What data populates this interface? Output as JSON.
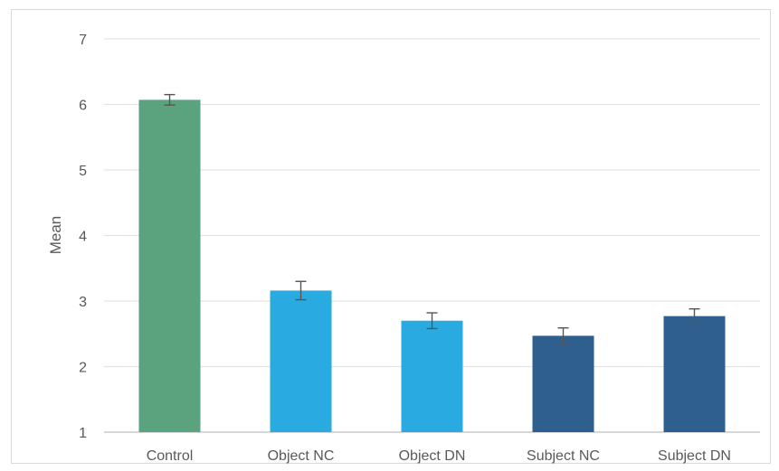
{
  "chart_data": {
    "type": "bar",
    "title": "",
    "xlabel": "",
    "ylabel": "Mean",
    "ylim": [
      1,
      7
    ],
    "yticks": [
      1,
      2,
      3,
      4,
      5,
      6,
      7
    ],
    "grid": true,
    "legend": "none",
    "categories": [
      "Control",
      "Object NC",
      "Object DN",
      "Subject NC",
      "Subject DN"
    ],
    "values": [
      6.07,
      3.16,
      2.7,
      2.47,
      2.77
    ],
    "error": [
      0.08,
      0.14,
      0.12,
      0.12,
      0.11
    ],
    "colors": [
      "#5aa37e",
      "#29abe2",
      "#29abe2",
      "#2e5f8e",
      "#2e5f8e"
    ]
  }
}
